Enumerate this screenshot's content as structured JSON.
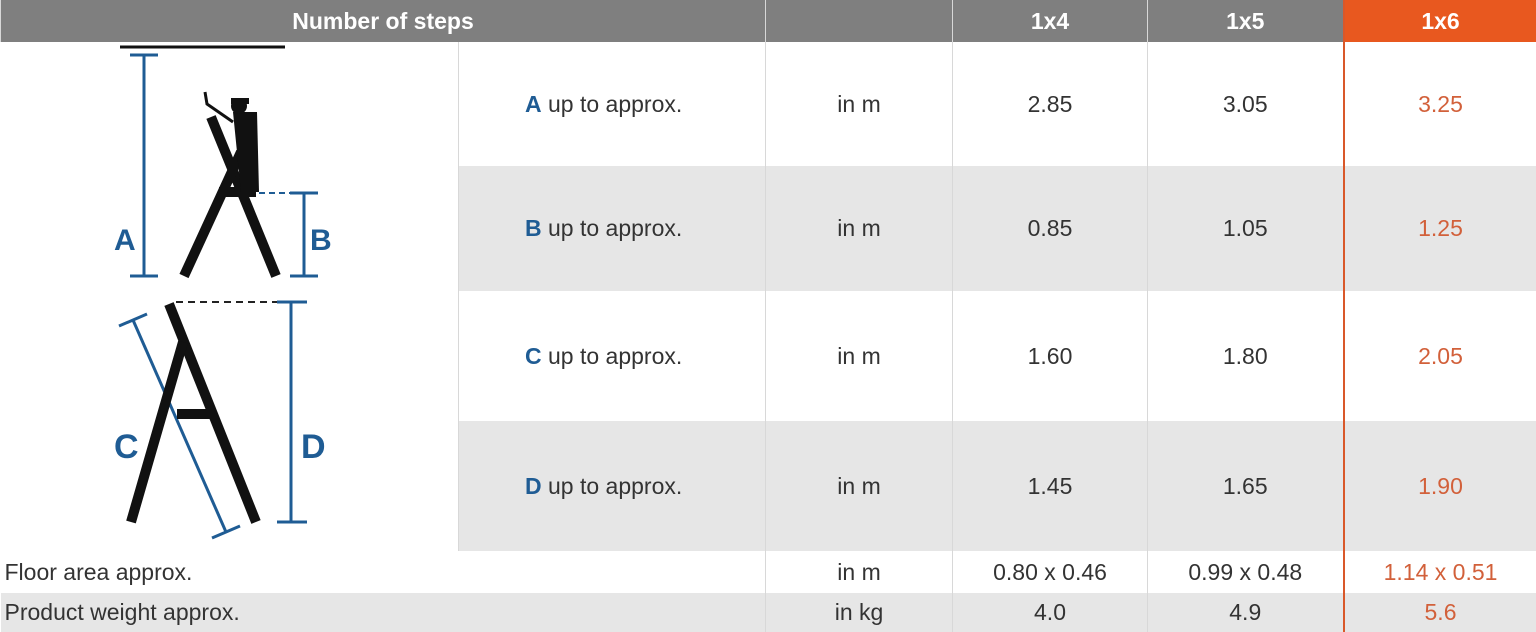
{
  "header": {
    "title": "Number of steps",
    "unit": "",
    "columns": [
      "1x4",
      "1x5",
      "1x6"
    ],
    "highlight_column": "1x6"
  },
  "colors": {
    "header_bg": "#7f7f7f",
    "highlight": "#e8581f",
    "highlight_text": "#d2603a",
    "letter_blue": "#1f5c94",
    "stripe": "#e6e6e6"
  },
  "diagram": {
    "letters": [
      "A",
      "B",
      "C",
      "D"
    ]
  },
  "rows": [
    {
      "letter": "A",
      "label": " up to approx.",
      "unit": "in m",
      "values": [
        "2.85",
        "3.05",
        "3.25"
      ]
    },
    {
      "letter": "B",
      "label": " up to approx.",
      "unit": "in m",
      "values": [
        "0.85",
        "1.05",
        "1.25"
      ]
    },
    {
      "letter": "C",
      "label": " up to approx.",
      "unit": "in m",
      "values": [
        "1.60",
        "1.80",
        "2.05"
      ]
    },
    {
      "letter": "D",
      "label": " up to approx.",
      "unit": "in m",
      "values": [
        "1.45",
        "1.65",
        "1.90"
      ]
    }
  ],
  "extra_rows": [
    {
      "label": "Floor area approx.",
      "unit": "in m",
      "values": [
        "0.80 x 0.46",
        "0.99 x 0.48",
        "1.14 x 0.51"
      ]
    },
    {
      "label": "Product weight approx.",
      "unit": "in kg",
      "values": [
        "4.0",
        "4.9",
        "5.6"
      ]
    }
  ]
}
